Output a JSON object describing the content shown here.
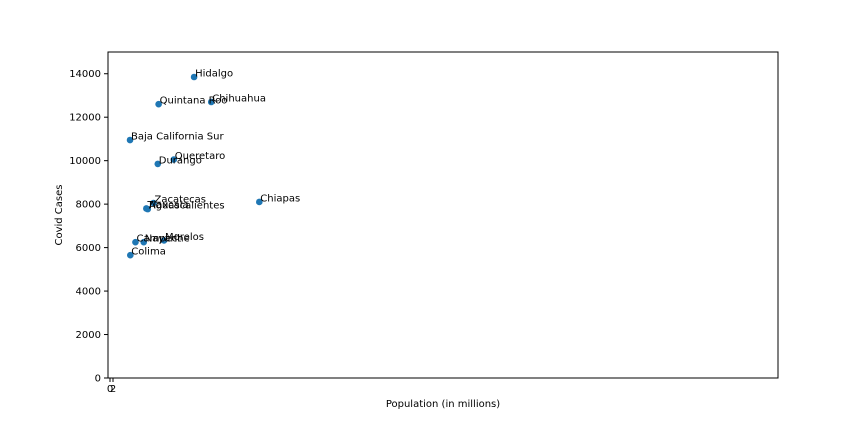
{
  "chart_data": {
    "type": "scatter",
    "title": "",
    "xlabel": "Population (in millions)",
    "ylabel": "Covid Cases",
    "x_ticks": [
      "0",
      "2"
    ],
    "y_ticks": [
      0,
      2000,
      4000,
      6000,
      8000,
      10000,
      12000,
      14000
    ],
    "ylim": [
      0,
      15000
    ],
    "grid": false,
    "marker_color": "#1f77b4",
    "points": [
      {
        "label": "Hidalgo",
        "x": 2.94,
        "y": 13850
      },
      {
        "label": "Quintana Roo",
        "x": 1.7,
        "y": 12600
      },
      {
        "label": "Chihuahua",
        "x": 3.54,
        "y": 12700
      },
      {
        "label": "Baja California Sur",
        "x": 0.7,
        "y": 10950
      },
      {
        "label": "Queretaro",
        "x": 2.23,
        "y": 10050
      },
      {
        "label": "Durango",
        "x": 1.67,
        "y": 9850
      },
      {
        "label": "Chiapas",
        "x": 5.22,
        "y": 8100
      },
      {
        "label": "Zacatecas",
        "x": 1.52,
        "y": 8050
      },
      {
        "label": "Tlaxcala",
        "x": 1.27,
        "y": 7800
      },
      {
        "label": "Aguascalientes",
        "x": 1.32,
        "y": 7770
      },
      {
        "label": "Morelos",
        "x": 1.89,
        "y": 6330
      },
      {
        "label": "Nayarit",
        "x": 1.18,
        "y": 6250
      },
      {
        "label": "Campeche",
        "x": 0.89,
        "y": 6250
      },
      {
        "label": "Colima",
        "x": 0.71,
        "y": 5650
      }
    ]
  }
}
